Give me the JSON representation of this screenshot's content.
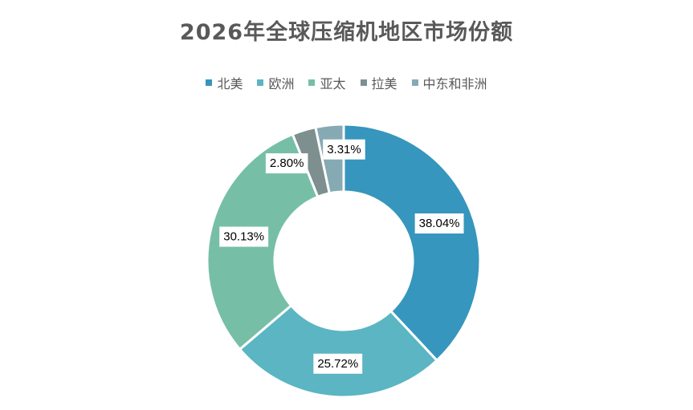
{
  "chart_data": {
    "type": "pie",
    "title": "2026年全球压缩机地区市场份额",
    "legend_position": "top",
    "donut": true,
    "slices": [
      {
        "name": "北美",
        "value": 38.04,
        "label": "38.04%",
        "color": "#3696bd"
      },
      {
        "name": "欧洲",
        "value": 25.72,
        "label": "25.72%",
        "color": "#5bb5c3"
      },
      {
        "name": "亚太",
        "value": 30.13,
        "label": "30.13%",
        "color": "#76bfa6"
      },
      {
        "name": "拉美",
        "value": 2.8,
        "label": "2.80%",
        "color": "#7d8f8f"
      },
      {
        "name": "中东和非洲",
        "value": 3.31,
        "label": "3.31%",
        "color": "#86aab3"
      }
    ]
  }
}
